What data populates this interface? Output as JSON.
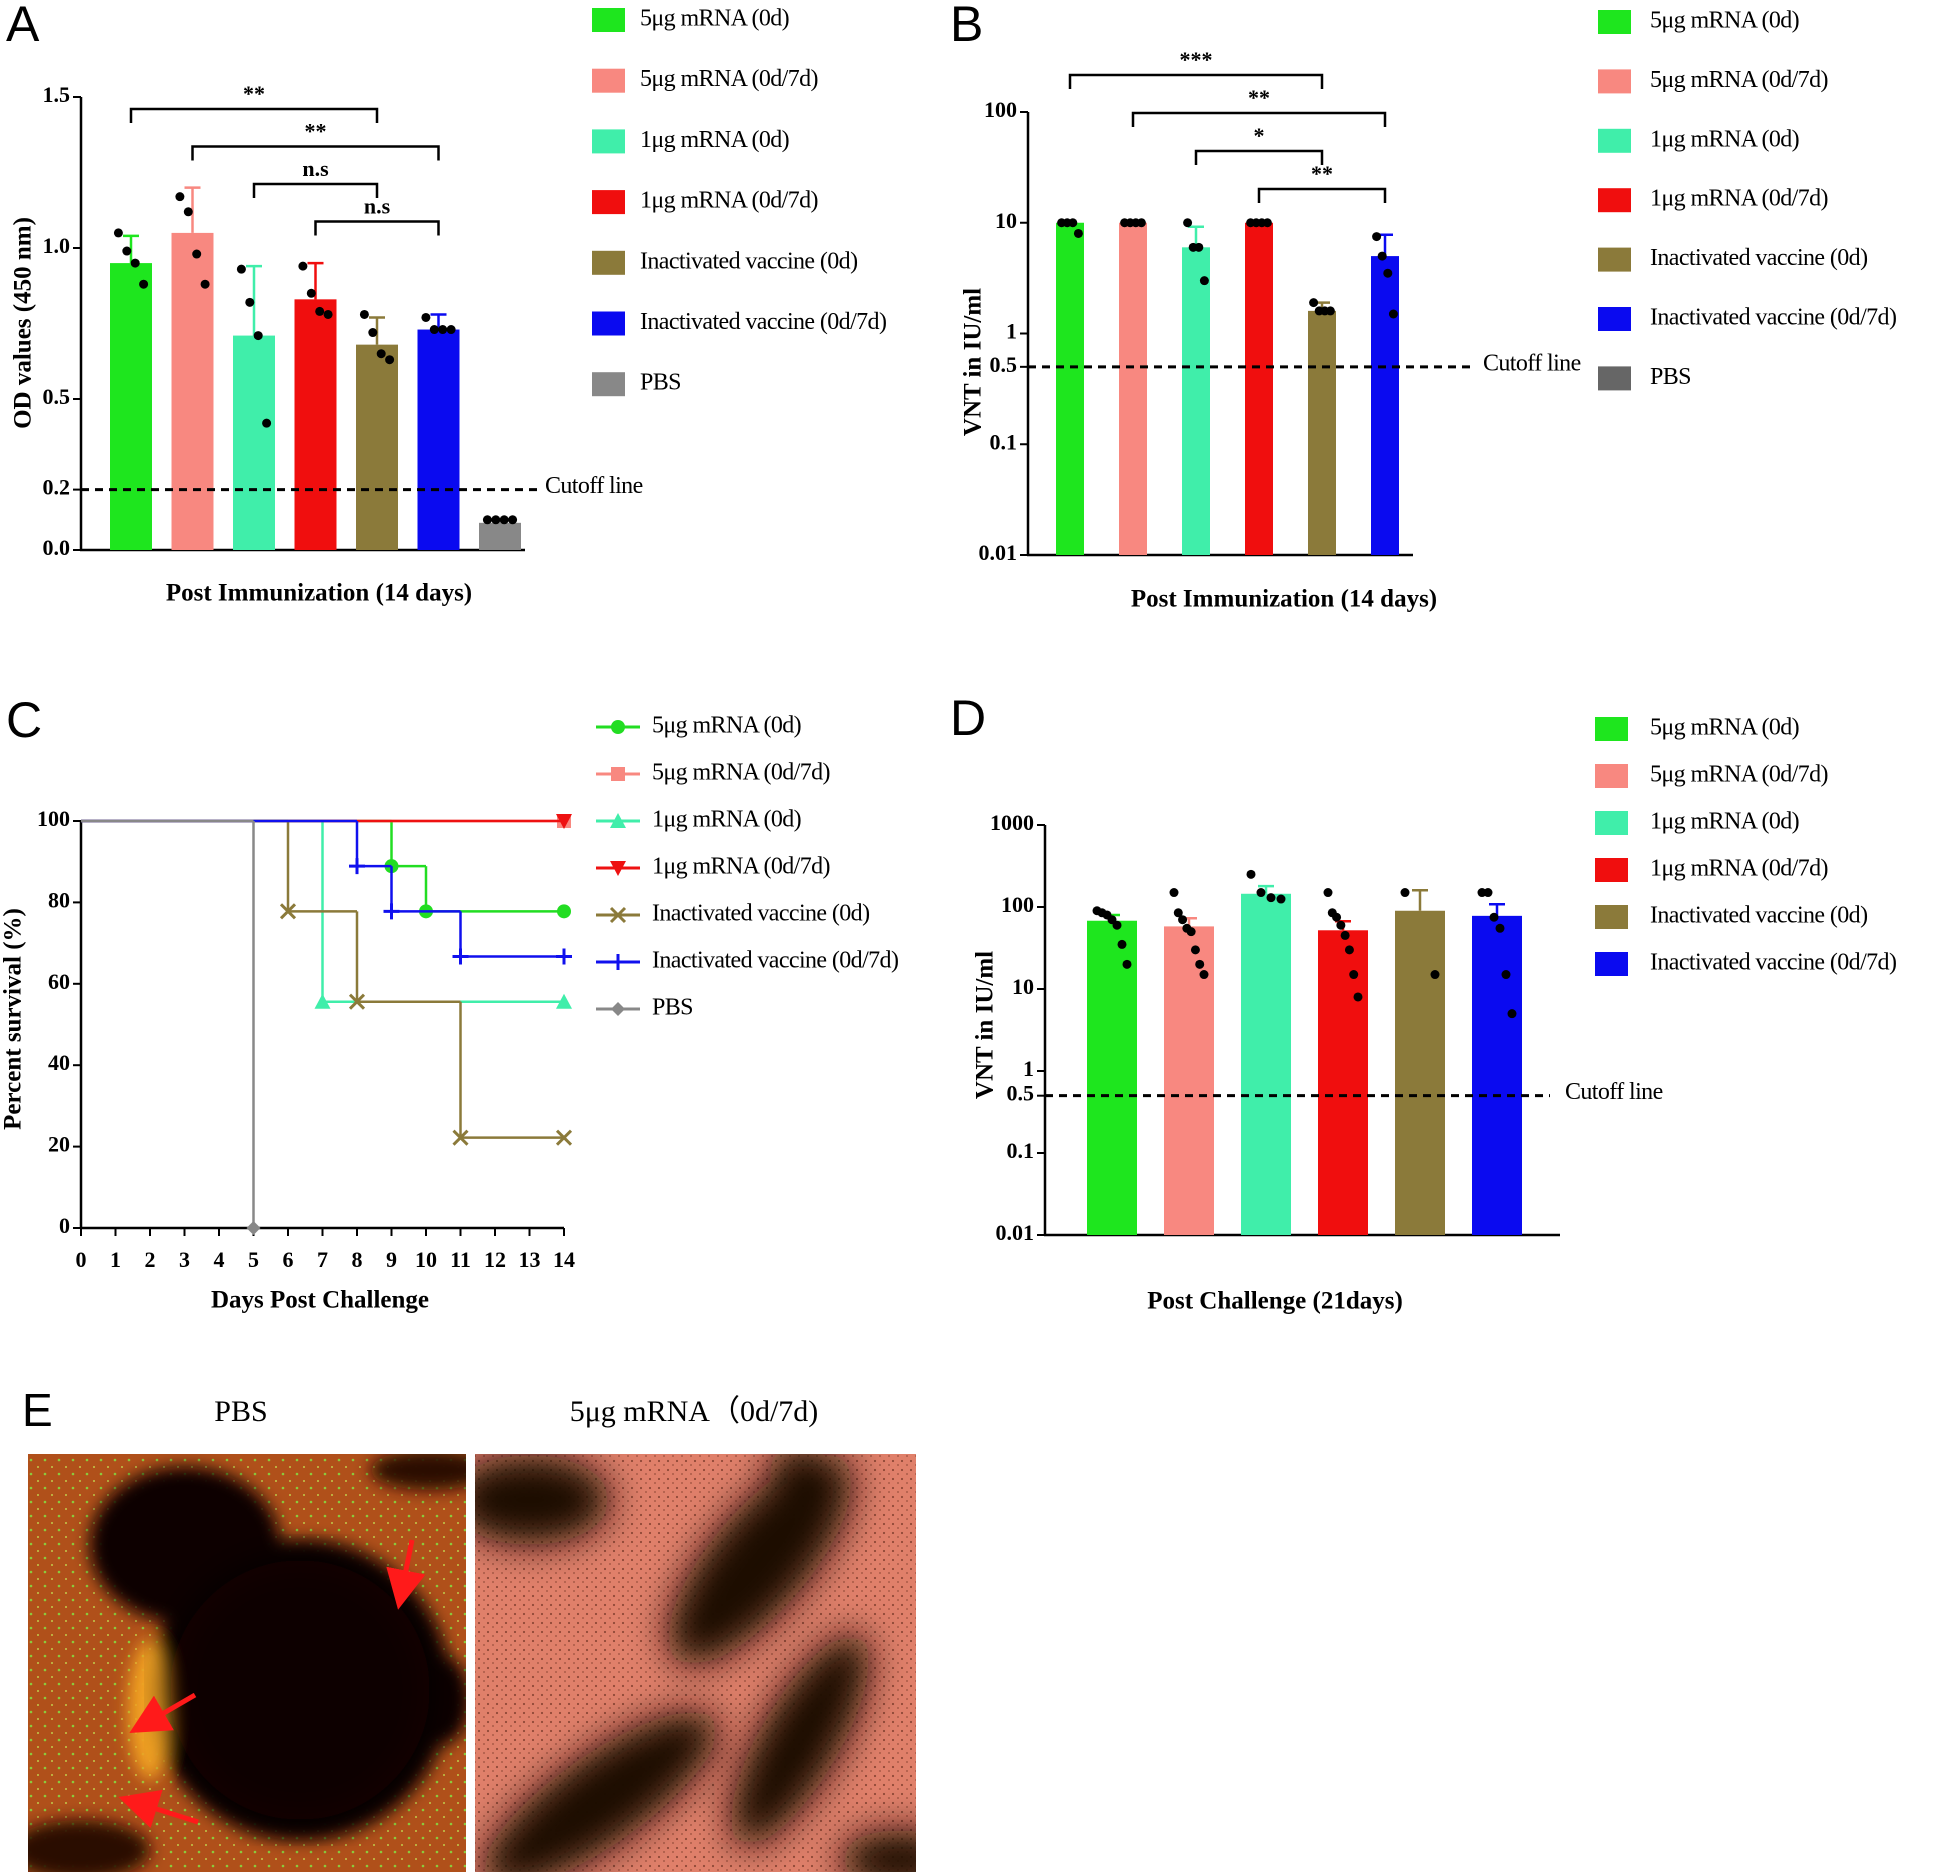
{
  "chart_data": [
    {
      "type": "bar",
      "panel": "A",
      "y_label": "OD values (450 nm)",
      "x_label": "Post Immunization (14 days)",
      "ylim": [
        0,
        1.5
      ],
      "yticks": [
        {
          "value": 0,
          "label": "0.0"
        },
        0.2,
        0.5,
        {
          "value": 1,
          "label": "1.0"
        },
        1.5
      ],
      "cutoff": {
        "value": 0.2,
        "label": "Cutoff line"
      },
      "series": [
        {
          "name": "5μg mRNA (0d)",
          "color": "#1ee61e",
          "value": 0.95,
          "error": 0.09,
          "points": [
            1.05,
            0.99,
            0.95,
            0.88
          ]
        },
        {
          "name": "5μg mRNA (0d/7d)",
          "color": "#f88880",
          "value": 1.05,
          "error": 0.15,
          "points": [
            1.17,
            1.12,
            0.98,
            0.88
          ]
        },
        {
          "name": "1μg mRNA (0d)",
          "color": "#40eeaa",
          "value": 0.71,
          "error": 0.23,
          "points": [
            0.93,
            0.82,
            0.71,
            0.42
          ]
        },
        {
          "name": "1μg mRNA (0d/7d)",
          "color": "#f00e0e",
          "value": 0.83,
          "error": 0.12,
          "points": [
            0.94,
            0.85,
            0.79,
            0.78
          ]
        },
        {
          "name": "Inactivated vaccine (0d)",
          "color": "#8b7a3a",
          "value": 0.68,
          "error": 0.09,
          "points": [
            0.78,
            0.72,
            0.65,
            0.63
          ]
        },
        {
          "name": "Inactivated vaccine (0d/7d)",
          "color": "#0a0af0",
          "value": 0.73,
          "error": 0.05,
          "points": [
            0.77,
            0.73,
            0.73,
            0.73
          ]
        },
        {
          "name": "PBS",
          "color": "#888888",
          "value": 0.09,
          "error": 0.01,
          "points": [
            0.1,
            0.1,
            0.1,
            0.1
          ]
        }
      ],
      "annotations": [
        {
          "text": "**",
          "from": 0,
          "to": 4
        },
        {
          "text": "**",
          "from": 1,
          "to": 5
        },
        {
          "text": "n.s",
          "from": 2,
          "to": 4
        },
        {
          "text": "n.s",
          "from": 3,
          "to": 5
        }
      ]
    },
    {
      "type": "bar",
      "panel": "B",
      "y_label": "VNT in IU/ml",
      "x_label": "Post Immunization (14 days)",
      "log_scale": true,
      "ylim": [
        0.01,
        100
      ],
      "yticks": [
        0.01,
        0.1,
        0.5,
        1,
        10,
        100
      ],
      "cutoff": {
        "value": 0.5,
        "label": "Cutoff line"
      },
      "series": [
        {
          "name": "5μg mRNA (0d)",
          "color": "#1ee61e",
          "value": 10,
          "error": 0,
          "points": [
            10,
            10,
            10,
            8
          ]
        },
        {
          "name": "5μg mRNA (0d/7d)",
          "color": "#f88880",
          "value": 10,
          "error": 0,
          "points": [
            10,
            10,
            10,
            10
          ]
        },
        {
          "name": "1μg mRNA (0d)",
          "color": "#40eeaa",
          "value": 6,
          "error": 3.2,
          "points": [
            10,
            6,
            6,
            3
          ]
        },
        {
          "name": "1μg mRNA (0d/7d)",
          "color": "#f00e0e",
          "value": 10,
          "error": 0,
          "points": [
            10,
            10,
            10,
            10
          ]
        },
        {
          "name": "Inactivated vaccine (0d)",
          "color": "#8b7a3a",
          "value": 1.6,
          "error": 0.3,
          "points": [
            1.9,
            1.6,
            1.6,
            1.6
          ]
        },
        {
          "name": "Inactivated vaccine (0d/7d)",
          "color": "#0a0af0",
          "value": 5,
          "error": 2.8,
          "points": [
            7.5,
            5,
            3.5,
            1.5
          ]
        },
        {
          "name": "PBS",
          "color": "#666666",
          "value": null
        }
      ],
      "annotations": [
        {
          "text": "***",
          "from": 0,
          "to": 4
        },
        {
          "text": "**",
          "from": 1,
          "to": 5
        },
        {
          "text": "*",
          "from": 2,
          "to": 4
        },
        {
          "text": "**",
          "from": 3,
          "to": 5
        }
      ]
    },
    {
      "type": "line",
      "panel": "C",
      "y_label": "Percent survival (%)",
      "x_label": "Days Post Challenge",
      "xlim": [
        0,
        14
      ],
      "xticks": [
        0,
        1,
        2,
        3,
        4,
        5,
        6,
        7,
        8,
        9,
        10,
        11,
        12,
        13,
        14
      ],
      "ylim": [
        0,
        100
      ],
      "yticks": [
        0,
        20,
        40,
        60,
        80,
        100
      ],
      "series": [
        {
          "name": "5μg mRNA (0d)",
          "color": "#22dd22",
          "marker": "circle",
          "x": [
            0,
            9,
            10,
            14
          ],
          "values": [
            100,
            88.9,
            77.8,
            77.8
          ]
        },
        {
          "name": "5μg mRNA (0d/7d)",
          "color": "#f88880",
          "marker": "square",
          "x": [
            0,
            14
          ],
          "values": [
            100,
            100
          ]
        },
        {
          "name": "1μg mRNA (0d)",
          "color": "#40eeaa",
          "marker": "triangle-up",
          "x": [
            0,
            7,
            14
          ],
          "values": [
            100,
            55.6,
            55.6
          ]
        },
        {
          "name": "1μg mRNA (0d/7d)",
          "color": "#ee1111",
          "marker": "triangle-down",
          "x": [
            0,
            14
          ],
          "values": [
            100,
            100
          ]
        },
        {
          "name": "Inactivated vaccine (0d)",
          "color": "#8b7a3a",
          "marker": "x",
          "x": [
            0,
            6,
            8,
            11,
            14
          ],
          "values": [
            100,
            77.8,
            55.6,
            22.2,
            22.2
          ]
        },
        {
          "name": "Inactivated vaccine (0d/7d)",
          "color": "#1010ee",
          "marker": "plus",
          "x": [
            0,
            8,
            9,
            11,
            14
          ],
          "values": [
            100,
            88.9,
            77.8,
            66.7,
            66.7
          ]
        },
        {
          "name": "PBS",
          "color": "#888888",
          "marker": "diamond",
          "x": [
            0,
            5
          ],
          "values": [
            100,
            0
          ]
        }
      ]
    },
    {
      "type": "bar",
      "panel": "D",
      "y_label": "VNT in IU/ml",
      "x_label": "Post Challenge (21days)",
      "log_scale": true,
      "ylim": [
        0.01,
        1000
      ],
      "yticks": [
        0.01,
        0.1,
        0.5,
        1,
        10,
        100,
        1000
      ],
      "cutoff": {
        "value": 0.5,
        "label": "Cutoff line"
      },
      "series": [
        {
          "name": "5μg mRNA (0d)",
          "color": "#1ee61e",
          "value": 68,
          "error": 12,
          "points": [
            90,
            85,
            80,
            70,
            60,
            35,
            20
          ]
        },
        {
          "name": "5μg mRNA (0d/7d)",
          "color": "#f88880",
          "value": 58,
          "error": 15,
          "points": [
            150,
            85,
            70,
            55,
            50,
            30,
            20,
            15
          ]
        },
        {
          "name": "1μg mRNA (0d)",
          "color": "#40eeaa",
          "value": 145,
          "error": 35,
          "points": [
            250,
            150,
            130,
            125
          ]
        },
        {
          "name": "1μg mRNA (0d/7d)",
          "color": "#f00e0e",
          "value": 52,
          "error": 15,
          "points": [
            150,
            85,
            75,
            60,
            45,
            30,
            15,
            8
          ]
        },
        {
          "name": "Inactivated vaccine (0d)",
          "color": "#8b7a3a",
          "value": 90,
          "error": 70,
          "points": [
            150,
            15
          ]
        },
        {
          "name": "Inactivated vaccine (0d/7d)",
          "color": "#0a0af0",
          "value": 78,
          "error": 30,
          "points": [
            150,
            150,
            75,
            55,
            15,
            5
          ]
        }
      ]
    }
  ],
  "panel_e": {
    "label": "E",
    "images": [
      {
        "title": "PBS"
      },
      {
        "title": "5μg mRNA（0d/7d)"
      }
    ]
  }
}
